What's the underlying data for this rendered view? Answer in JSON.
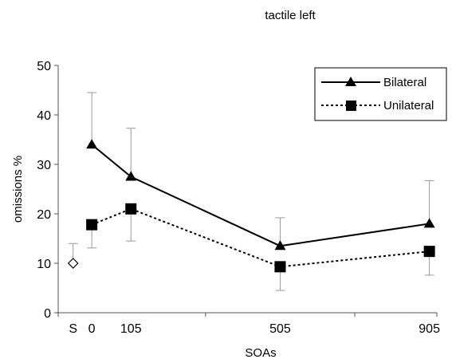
{
  "chart_data": {
    "type": "line",
    "title": "tactile left",
    "xlabel": "SOAs",
    "ylabel": "omissions %",
    "ylim": [
      0,
      50
    ],
    "yticks": [
      0,
      10,
      20,
      30,
      40,
      50
    ],
    "x_categories": [
      "S",
      "0",
      "105",
      "505",
      "905"
    ],
    "x_category_values": [
      -50,
      0,
      105,
      505,
      905
    ],
    "x_minor_ticks": [
      305,
      705
    ],
    "grid": false,
    "legend_position": "top-right",
    "series": [
      {
        "name": "Bilateral",
        "marker": "triangle",
        "line_style": "solid",
        "x": [
          0,
          105,
          505,
          905
        ],
        "y": [
          34,
          27.5,
          13.5,
          18
        ],
        "error_upper": [
          44.5,
          37.3,
          19.2,
          26.7
        ],
        "error_lower": [
          null,
          null,
          null,
          null
        ]
      },
      {
        "name": "Unilateral",
        "marker": "square",
        "line_style": "dotted",
        "x": [
          0,
          105,
          505,
          905
        ],
        "y": [
          17.8,
          21,
          9.3,
          12.4
        ],
        "error_upper": [
          null,
          null,
          null,
          null
        ],
        "error_lower": [
          13.1,
          14.5,
          4.5,
          7.6
        ]
      },
      {
        "name": "",
        "marker": "diamond-open",
        "line_style": "none",
        "x": [
          -50
        ],
        "y": [
          10
        ],
        "error_upper": [
          14
        ],
        "error_lower": [
          null
        ]
      }
    ],
    "colors": {
      "line": "#000000",
      "error_bar": "#999999",
      "axis": "#555555"
    }
  }
}
